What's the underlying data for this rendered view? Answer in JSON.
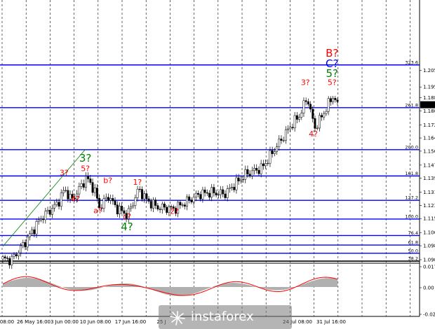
{
  "chart_data": {
    "type": "candlestick",
    "price_axis": {
      "ticks": [
        "1.2051",
        "1.1951",
        "1.1886",
        "1.1806",
        "1.1721",
        "1.1641",
        "1.1561",
        "1.1476",
        "1.1396",
        "1.1311",
        "1.1231",
        "1.1151",
        "1.1066",
        "1.0986",
        "1.0901"
      ],
      "current_price": "1.1843"
    },
    "fib_levels": [
      {
        "label": "323.6",
        "price": 1.2085,
        "color": "#0000ff"
      },
      {
        "label": "261.8",
        "price": 1.1825,
        "color": "#0000ff"
      },
      {
        "label": "200.0",
        "price": 1.157,
        "color": "#0000ff"
      },
      {
        "label": "161.8",
        "price": 1.141,
        "color": "#0000ff"
      },
      {
        "label": "127.2",
        "price": 1.1262,
        "color": "#0000ff"
      },
      {
        "label": "100.0",
        "price": 1.1148,
        "color": "#0000ff"
      },
      {
        "label": "76.4",
        "price": 1.1048,
        "color": "#0000ff"
      },
      {
        "label": "61.8",
        "price": 1.099,
        "color": "#0000ff"
      },
      {
        "label": "50.0",
        "price": 1.094,
        "color": "#0000ff"
      },
      {
        "label": "38.2",
        "price": 1.0892,
        "color": "#808080"
      }
    ],
    "time_axis": {
      "ticks": [
        "08:00",
        "26 May 16:00",
        "3 Jun 00:00",
        "10 Jun 08:00",
        "17 Jun 16:00",
        "25 J",
        "",
        "",
        "24 Jul 08:00",
        "31 Jul 16:00"
      ]
    },
    "wave_labels": [
      {
        "text": "3?",
        "color": "#ff0000",
        "price": 1.1413,
        "time": 0.147
      },
      {
        "text": "4?",
        "color": "#ff0000",
        "price": 1.1255,
        "time": 0.174
      },
      {
        "text": "5?",
        "color": "#ff0000",
        "price": 1.144,
        "time": 0.198
      },
      {
        "text": "3?",
        "color": "#008000",
        "price": 1.1497,
        "time": 0.198
      },
      {
        "text": "b?",
        "color": "#ff0000",
        "price": 1.1366,
        "time": 0.252
      },
      {
        "text": "a?",
        "color": "#ff0000",
        "price": 1.1184,
        "time": 0.228
      },
      {
        "text": "1?",
        "color": "#ff0000",
        "price": 1.1356,
        "time": 0.323
      },
      {
        "text": "c?",
        "color": "#ff0000",
        "price": 1.1148,
        "time": 0.298
      },
      {
        "text": "4?",
        "color": "#008000",
        "price": 1.108,
        "time": 0.298
      },
      {
        "text": "2?",
        "color": "#ff0000",
        "price": 1.118,
        "time": 0.411
      },
      {
        "text": "3?",
        "color": "#ff0000",
        "price": 1.1962,
        "time": 0.726
      },
      {
        "text": "4?",
        "color": "#ff0000",
        "price": 1.165,
        "time": 0.745
      },
      {
        "text": "5?",
        "color": "#ff0000",
        "price": 1.1962,
        "time": 0.79
      },
      {
        "text": "5?",
        "color": "#008000",
        "price": 1.2012,
        "time": 0.79
      },
      {
        "text": "C?",
        "color": "#0000ff",
        "price": 1.2072,
        "time": 0.79
      },
      {
        "text": "B?",
        "color": "#ff0000",
        "price": 1.2136,
        "time": 0.79
      }
    ],
    "oscillator": {
      "ticks": [
        "0.01782",
        "0.00",
        "-0.02198"
      ]
    }
  },
  "watermark": {
    "brand": "instaforex"
  }
}
